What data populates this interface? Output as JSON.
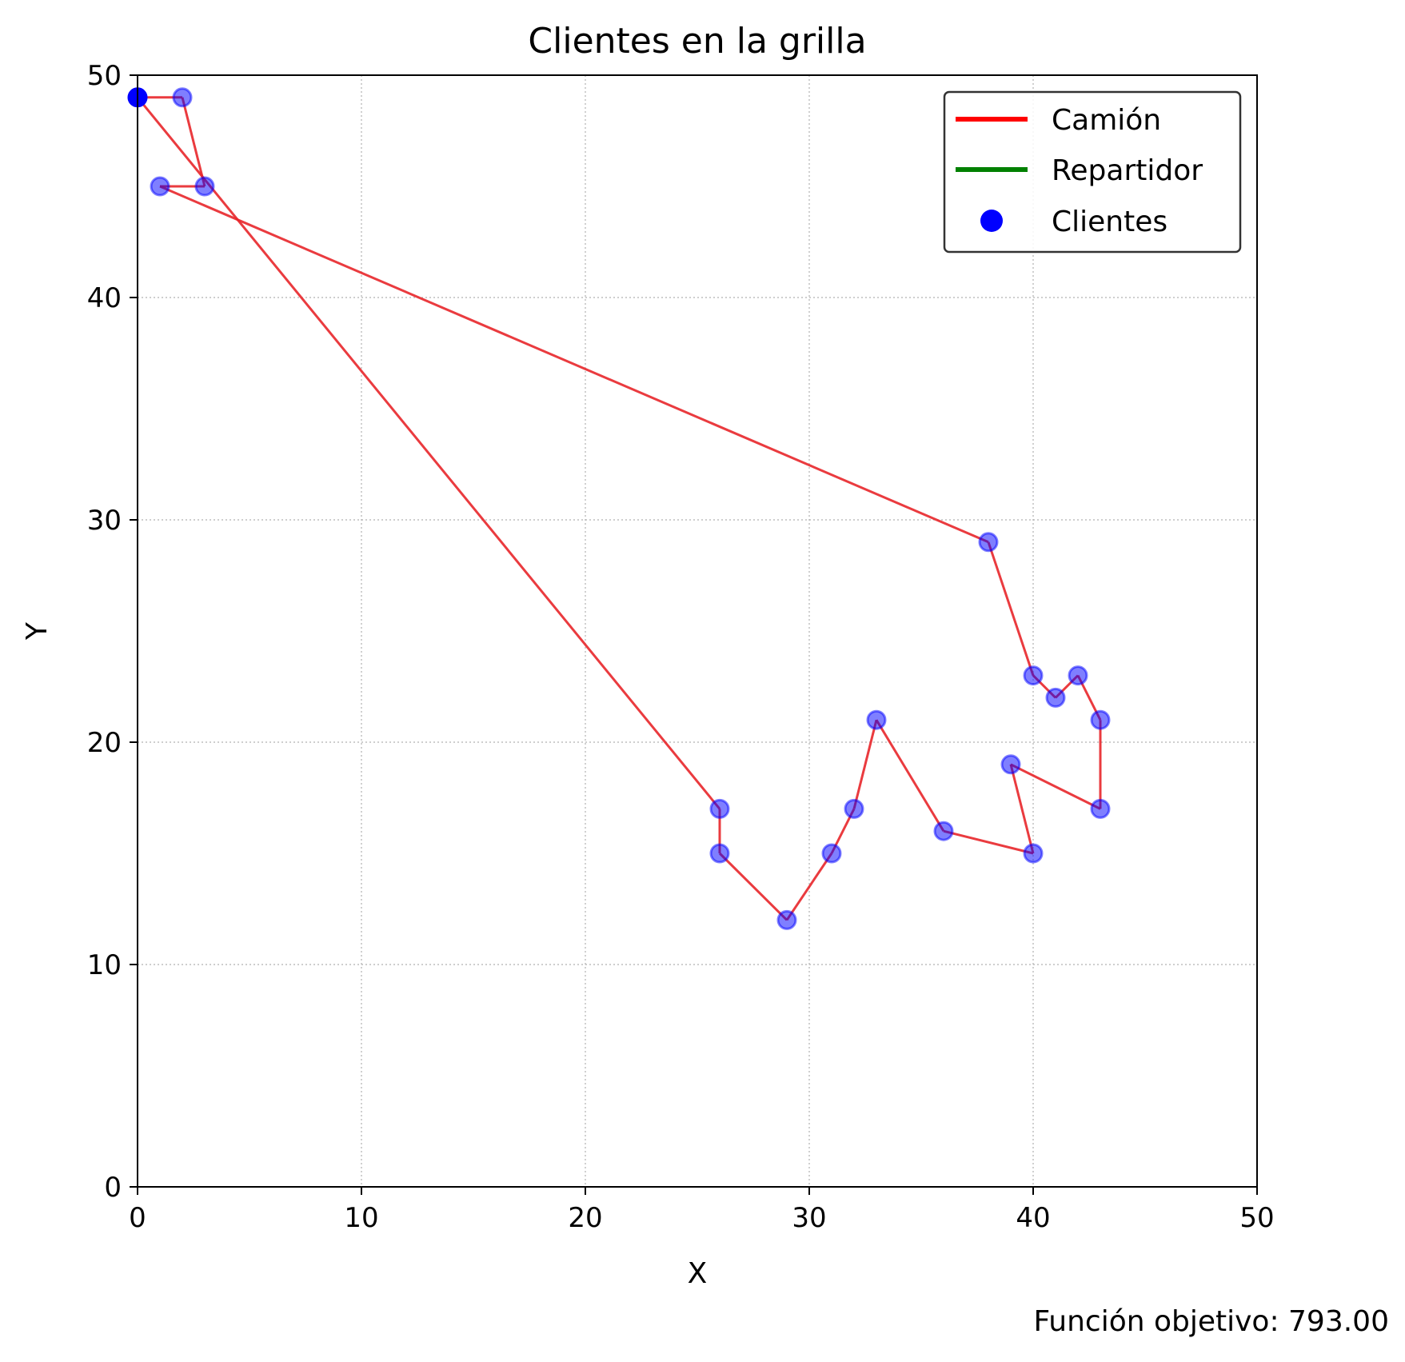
{
  "chart_data": {
    "type": "scatter",
    "title": "Clientes en la grilla",
    "xlabel": "X",
    "ylabel": "Y",
    "xlim": [
      0,
      50
    ],
    "ylim": [
      0,
      50
    ],
    "xticks": [
      0,
      10,
      20,
      30,
      40,
      50
    ],
    "yticks": [
      0,
      10,
      20,
      30,
      40,
      50
    ],
    "grid": true,
    "legend": {
      "placement": "top-right",
      "entries": [
        {
          "label": "Camión",
          "color": "#ff0000",
          "kind": "line"
        },
        {
          "label": "Repartidor",
          "color": "#008000",
          "kind": "line"
        },
        {
          "label": "Clientes",
          "color": "#0000ff",
          "kind": "marker"
        }
      ]
    },
    "route_color": "#e8262a",
    "client_color": "#0000ff",
    "depot": {
      "x": 0,
      "y": 49
    },
    "clients": [
      {
        "x": 2,
        "y": 49
      },
      {
        "x": 3,
        "y": 45
      },
      {
        "x": 1,
        "y": 45
      },
      {
        "x": 38,
        "y": 29
      },
      {
        "x": 40,
        "y": 23
      },
      {
        "x": 41,
        "y": 22
      },
      {
        "x": 42,
        "y": 23
      },
      {
        "x": 43,
        "y": 21
      },
      {
        "x": 43,
        "y": 17
      },
      {
        "x": 39,
        "y": 19
      },
      {
        "x": 40,
        "y": 15
      },
      {
        "x": 36,
        "y": 16
      },
      {
        "x": 33,
        "y": 21
      },
      {
        "x": 32,
        "y": 17
      },
      {
        "x": 31,
        "y": 15
      },
      {
        "x": 29,
        "y": 12
      },
      {
        "x": 26,
        "y": 15
      },
      {
        "x": 26,
        "y": 17
      }
    ],
    "truck_route": [
      {
        "x": 0,
        "y": 49
      },
      {
        "x": 2,
        "y": 49
      },
      {
        "x": 3,
        "y": 45
      },
      {
        "x": 1,
        "y": 45
      },
      {
        "x": 38,
        "y": 29
      },
      {
        "x": 40,
        "y": 23
      },
      {
        "x": 41,
        "y": 22
      },
      {
        "x": 42,
        "y": 23
      },
      {
        "x": 43,
        "y": 21
      },
      {
        "x": 43,
        "y": 17
      },
      {
        "x": 39,
        "y": 19
      },
      {
        "x": 40,
        "y": 15
      },
      {
        "x": 36,
        "y": 16
      },
      {
        "x": 33,
        "y": 21
      },
      {
        "x": 32,
        "y": 17
      },
      {
        "x": 31,
        "y": 15
      },
      {
        "x": 29,
        "y": 12
      },
      {
        "x": 26,
        "y": 15
      },
      {
        "x": 26,
        "y": 17
      },
      {
        "x": 0,
        "y": 49
      }
    ]
  },
  "footer": {
    "objective_text": "Función objetivo: 793.00"
  }
}
